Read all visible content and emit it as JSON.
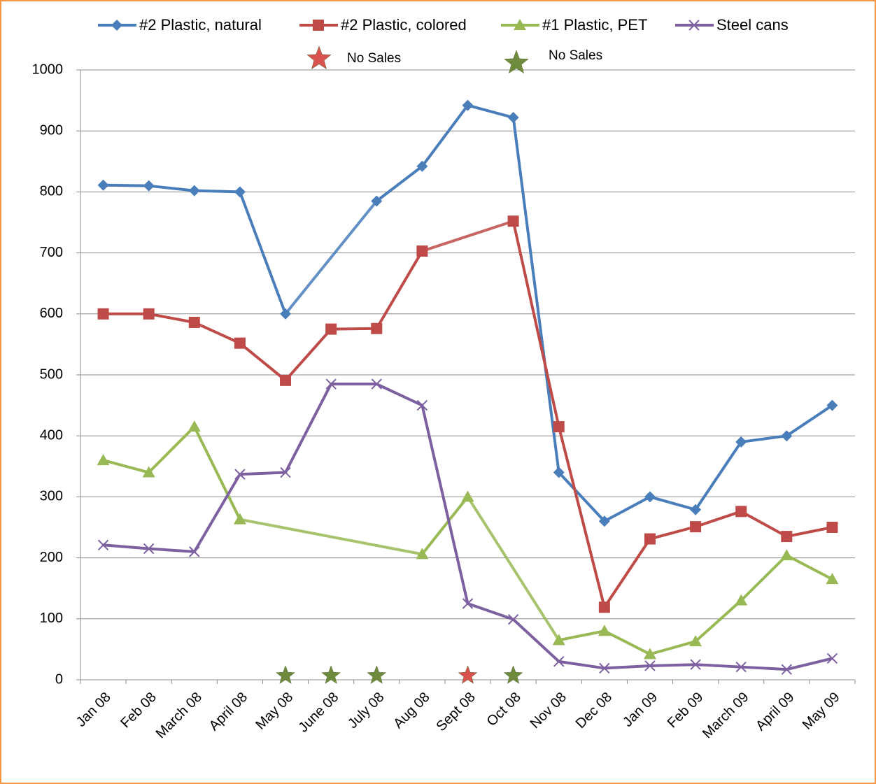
{
  "chart_data": {
    "type": "line",
    "categories": [
      "Jan 08",
      "Feb 08",
      "March 08",
      "April 08",
      "May 08",
      "June 08",
      "July 08",
      "Aug 08",
      "Sept 08",
      "Oct 08",
      "Nov 08",
      "Dec 08",
      "Jan 09",
      "Feb 09",
      "March 09",
      "April 09",
      "May 09"
    ],
    "series": [
      {
        "name": "#2 Plastic, natural",
        "color": "#4a7ebb",
        "marker": "diamond",
        "values": [
          811,
          810,
          802,
          800,
          600,
          null,
          785,
          842,
          942,
          922,
          340,
          260,
          300,
          279,
          390,
          400,
          450
        ]
      },
      {
        "name": "#2 Plastic, colored",
        "color": "#be4b48",
        "marker": "square",
        "values": [
          600,
          600,
          586,
          552,
          491,
          575,
          576,
          703,
          null,
          752,
          415,
          119,
          231,
          251,
          276,
          235,
          250
        ]
      },
      {
        "name": "#1 Plastic, PET",
        "color": "#98b954",
        "marker": "triangle",
        "values": [
          360,
          340,
          415,
          263,
          null,
          null,
          null,
          206,
          300,
          null,
          65,
          80,
          42,
          63,
          130,
          204,
          165
        ]
      },
      {
        "name": "Steel cans",
        "color": "#7d60a0",
        "marker": "x",
        "values": [
          221,
          215,
          210,
          337,
          340,
          485,
          485,
          450,
          125,
          99,
          30,
          19,
          23,
          25,
          21,
          17,
          35
        ]
      }
    ],
    "no_sales": [
      {
        "name": "No Sales",
        "color": "#d9534f",
        "categories": [
          "Sept 08"
        ]
      },
      {
        "name": "No Sales",
        "color": "#6e8b3d",
        "categories": [
          "May 08",
          "June 08",
          "July 08",
          "Oct 08"
        ]
      }
    ],
    "connect_gaps": true,
    "ylim": [
      0,
      1000
    ],
    "yticks": [
      0,
      100,
      200,
      300,
      400,
      500,
      600,
      700,
      800,
      900,
      1000
    ],
    "grid": true,
    "legend": "top"
  }
}
